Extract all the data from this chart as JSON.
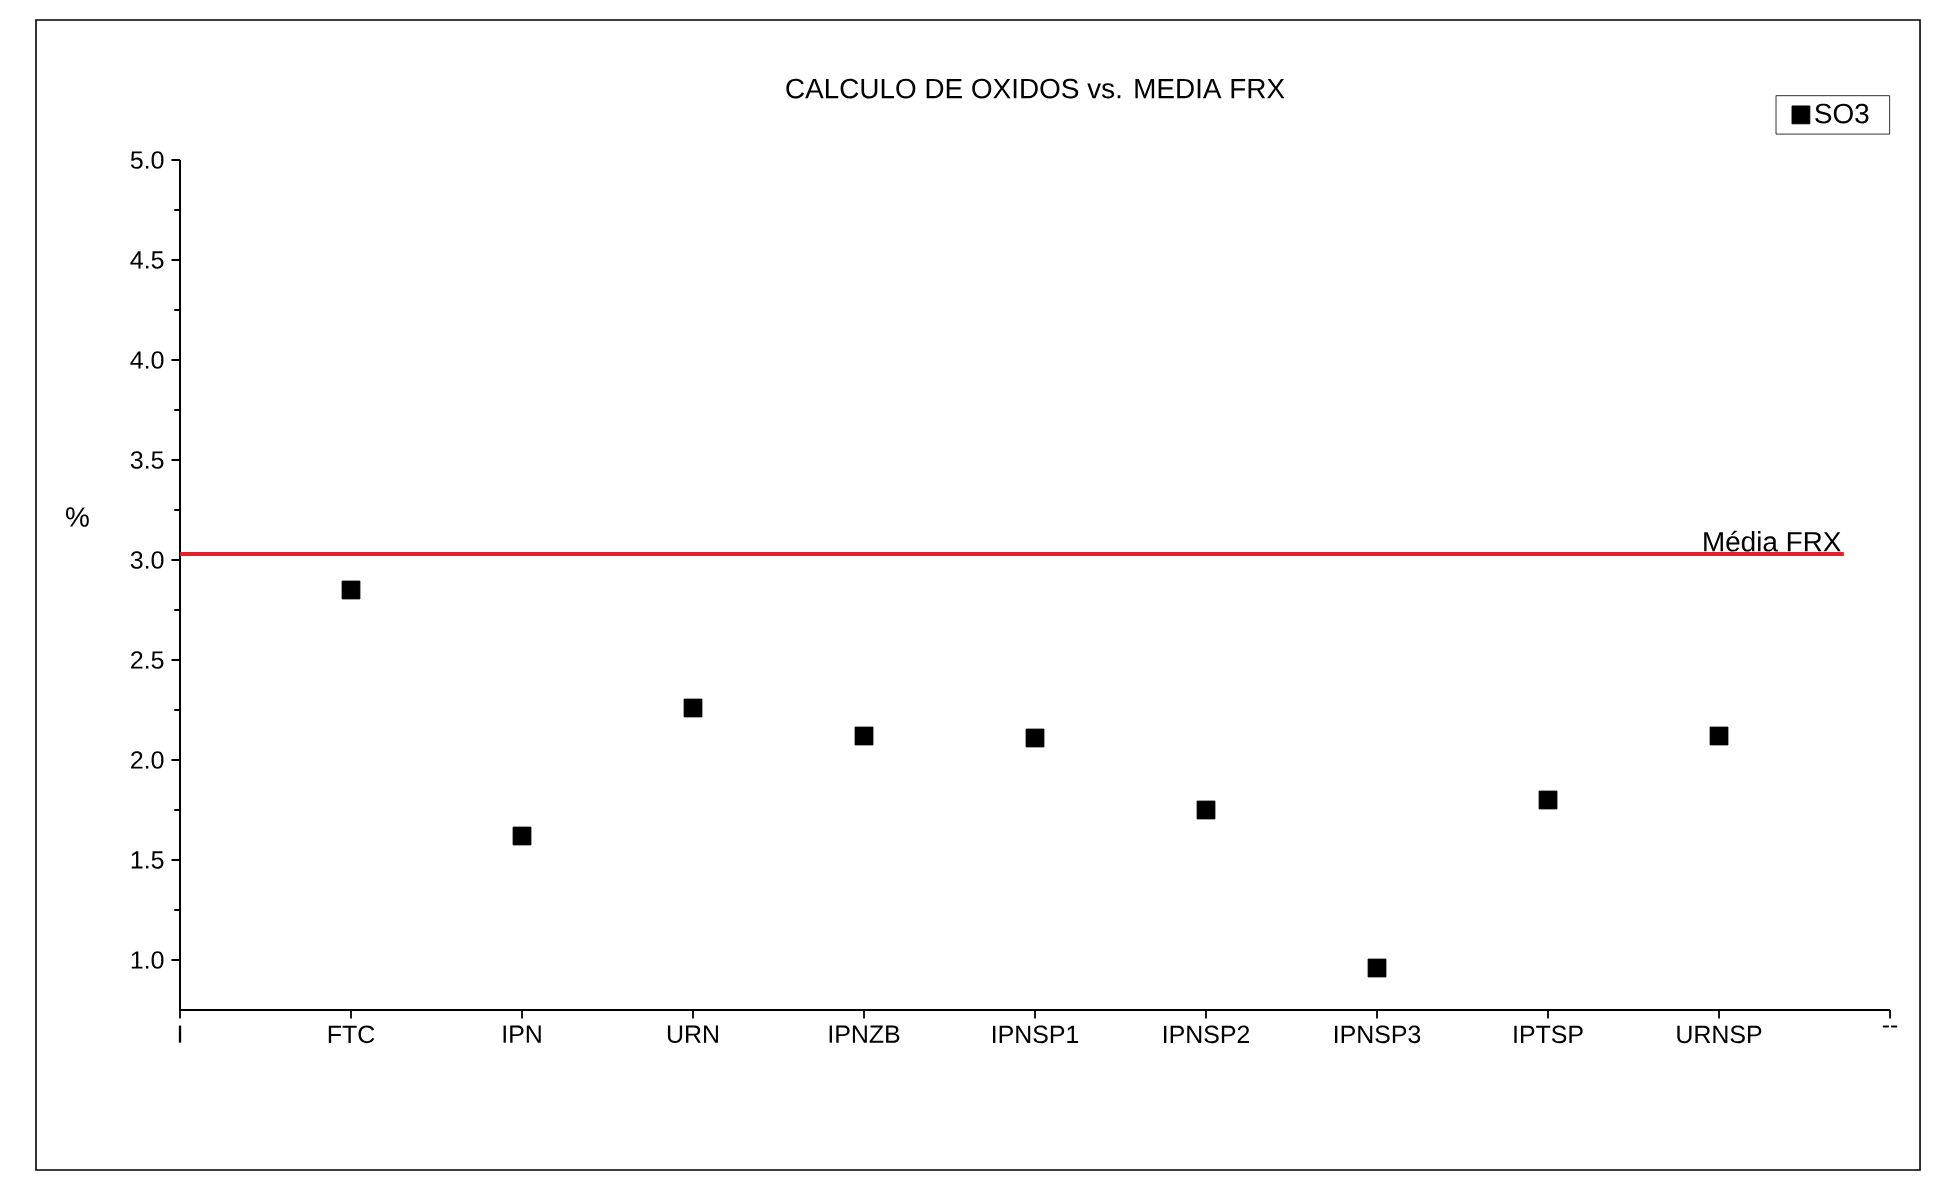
{
  "chart_data": {
    "type": "scatter",
    "title": "CALCULO DE OXIDOS vs. MEDIA FRX",
    "ylabel": "%",
    "categories": [
      "I",
      "FTC",
      "IPN",
      "URN",
      "IPNZB",
      "IPNSP1",
      "IPNSP2",
      "IPNSP3",
      "IPTSP",
      "URNSP",
      "--"
    ],
    "series": [
      {
        "name": "SO3",
        "color": "#000000",
        "values": [
          null,
          2.85,
          1.62,
          2.26,
          2.12,
          2.11,
          1.75,
          0.96,
          1.8,
          2.12,
          null
        ]
      }
    ],
    "ylim": [
      0.75,
      5.0
    ],
    "yticks": [
      {
        "value": 1.0,
        "label": "1.0"
      },
      {
        "value": 1.5,
        "label": "1.5"
      },
      {
        "value": 2.0,
        "label": "2.0"
      },
      {
        "value": 2.5,
        "label": "2.5"
      },
      {
        "value": 3.0,
        "label": "3.0"
      },
      {
        "value": 3.5,
        "label": "3.5"
      },
      {
        "value": 4.0,
        "label": "4.0"
      },
      {
        "value": 4.5,
        "label": "4.5"
      },
      {
        "value": 5.0,
        "label": "5.0"
      }
    ],
    "ref_lines": [
      {
        "axis": "y",
        "value": 3.03,
        "label": "Média FRX",
        "color": "#e0202a"
      }
    ],
    "marker": "square",
    "legend": "top right",
    "grid": false
  }
}
